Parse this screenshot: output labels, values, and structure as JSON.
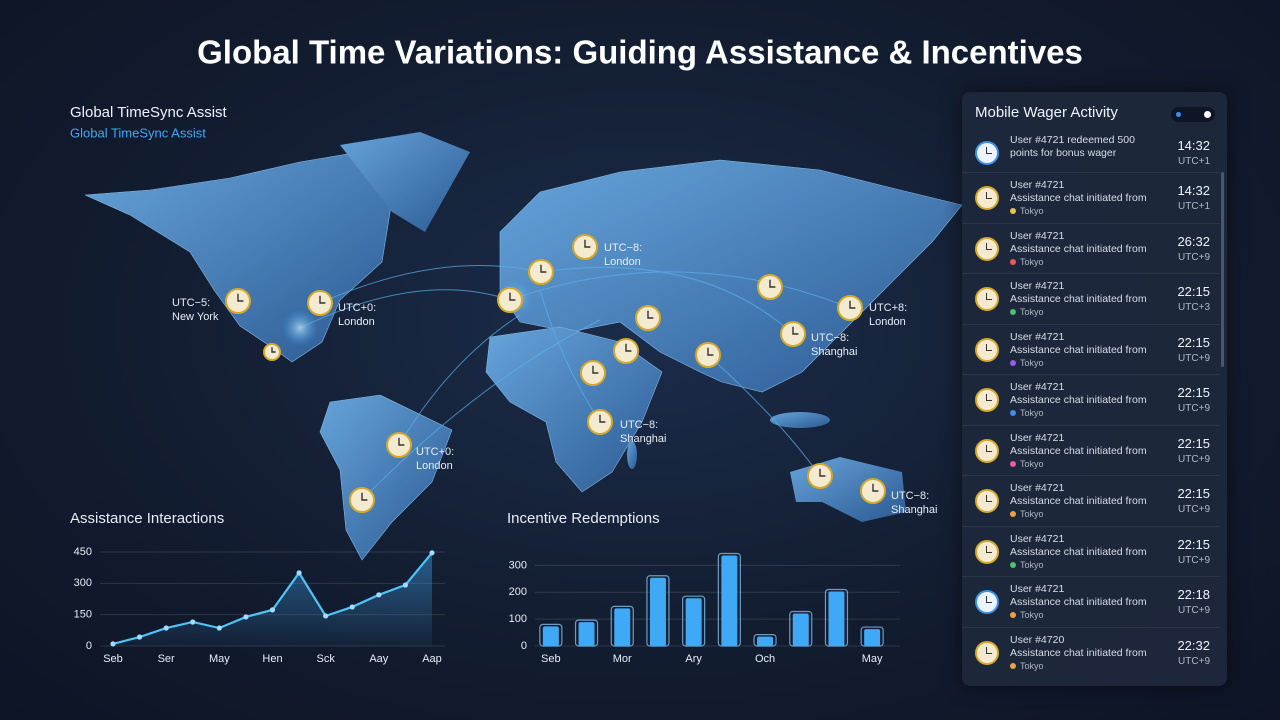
{
  "header": {
    "title": "Global Time Variations: Guiding Assistance & Incentives"
  },
  "map": {
    "title": "Global TimeSync Assist",
    "subtitle": "Global TimeSync Assist",
    "labels": [
      {
        "zone": "UTC−5:",
        "city": "New York"
      },
      {
        "zone": "UTC+0:",
        "city": "London"
      },
      {
        "zone": "UTC−8:",
        "city": "London"
      },
      {
        "zone": "UTC+8:",
        "city": "London"
      },
      {
        "zone": "UTC−8:",
        "city": "Shanghai"
      },
      {
        "zone": "UTC−8:",
        "city": "Shanghai"
      },
      {
        "zone": "UTC+0:",
        "city": "London"
      },
      {
        "zone": "UTC−8:",
        "city": "Shanghai"
      }
    ]
  },
  "chart_data": [
    {
      "type": "line",
      "title": "Assistance Interactions",
      "color": "#4fc3f7",
      "categories": [
        "Seb",
        null,
        "Ser",
        null,
        "May",
        null,
        "Hen",
        null,
        "Sck",
        null,
        "Aay",
        null,
        "Aap"
      ],
      "values": [
        10,
        43,
        86,
        115,
        86,
        139,
        173,
        350,
        144,
        187,
        245,
        292,
        446
      ],
      "ylim": [
        0,
        450
      ],
      "yticks": [
        0,
        150,
        300,
        450
      ],
      "grid": true
    },
    {
      "type": "bar",
      "title": "Incentive Redemptions",
      "color": "#3fa9f5",
      "categories": [
        "Seb",
        null,
        "Mor",
        null,
        "Ary",
        null,
        "Och",
        null,
        null,
        "May"
      ],
      "values": [
        73,
        89,
        140,
        254,
        178,
        337,
        35,
        121,
        203,
        63
      ],
      "ylim": [
        0,
        350
      ],
      "yticks": [
        0,
        100,
        200,
        300
      ],
      "grid": true
    }
  ],
  "activity": {
    "title": "Mobile Wager Activity",
    "items": [
      {
        "text": "User #4721 redeemed 500 points for bonus wager",
        "time": "14:32",
        "zone": "UTC+1"
      },
      {
        "user": "User #4721",
        "action": "Assistance chat initiated from",
        "location": "Tokyo",
        "dot": "#e8c547",
        "time": "14:32",
        "zone": "UTC+1"
      },
      {
        "user": "User #4721",
        "action": "Assistance chat initiated from",
        "location": "Tokyo",
        "dot": "#e85a5a",
        "time": "26:32",
        "zone": "UTC+9"
      },
      {
        "user": "User #4721",
        "action": "Assistance chat initiated from",
        "location": "Tokyo",
        "dot": "#4cc26a",
        "time": "22:15",
        "zone": "UTC+3"
      },
      {
        "user": "User #4721",
        "action": "Assistance chat initiated from",
        "location": "Tokyo",
        "dot": "#9b59e8",
        "time": "22:15",
        "zone": "UTC+9"
      },
      {
        "user": "User #4721",
        "action": "Assistance chat initiated from",
        "location": "Tokyo",
        "dot": "#3b8fe8",
        "time": "22:15",
        "zone": "UTC+9"
      },
      {
        "user": "User #4721",
        "action": "Assistance chat initiated from",
        "location": "Tokyo",
        "dot": "#e85aa8",
        "time": "22:15",
        "zone": "UTC+9"
      },
      {
        "user": "User #4721",
        "action": "Assistance chat initiated from",
        "location": "Tokyo",
        "dot": "#f0a040",
        "time": "22:15",
        "zone": "UTC+9"
      },
      {
        "user": "User #4721",
        "action": "Assistance chat initiated from",
        "location": "Tokyo",
        "dot": "#4cc26a",
        "time": "22:15",
        "zone": "UTC+9"
      },
      {
        "user": "User #4721",
        "action": "Assistance chat initiated from",
        "location": "Tokyo",
        "dot": "#f0a040",
        "time": "22:18",
        "zone": "UTC+9"
      },
      {
        "user": "User #4720",
        "action": "Assistance chat initiated from",
        "location": "Tokyo",
        "dot": "#f0a040",
        "time": "22:32",
        "zone": "UTC+9"
      }
    ]
  }
}
